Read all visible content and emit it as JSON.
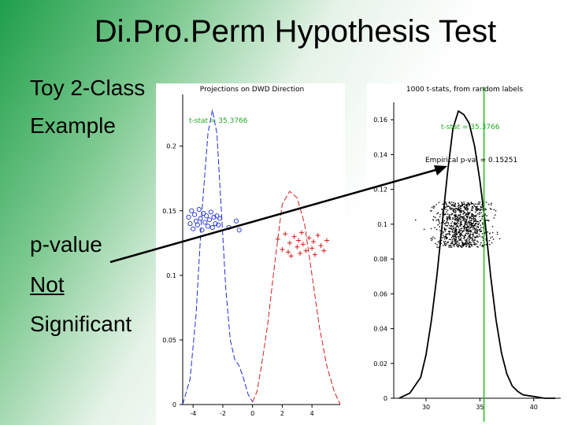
{
  "slide": {
    "title": "Di.Pro.Perm Hypothesis Test",
    "lines": [
      "Toy 2-Class",
      "Example",
      "p-value",
      "Not",
      "Significant"
    ]
  },
  "colors": {
    "class1": "#1f2fd0",
    "class2": "#d01f1f",
    "marker": "#22bb22",
    "accent": "#1e9e4a"
  },
  "chart_data": [
    {
      "type": "line",
      "title": "Projections on DWD Direction",
      "annotation": "t-stat = 35.3766",
      "y_ticks": [
        "0",
        "0.05",
        "0.1",
        "0.15",
        "0.2"
      ],
      "x_ticks": [
        "-4",
        "-2",
        "0",
        "2",
        "4"
      ],
      "ylim": [
        0,
        0.24
      ],
      "xlim": [
        -4.7,
        5.9
      ],
      "series": [
        {
          "x": [
            -4.7,
            -4.2,
            -3.8,
            -3.4,
            -3.0,
            -2.7,
            -2.4,
            -2.1,
            -1.8,
            -1.5,
            -1.2,
            -0.9,
            -0.6,
            -0.3,
            0.0
          ],
          "y": [
            0.0,
            0.02,
            0.07,
            0.15,
            0.21,
            0.228,
            0.21,
            0.15,
            0.09,
            0.05,
            0.035,
            0.03,
            0.02,
            0.008,
            0.002
          ]
        },
        {
          "x": [
            0.0,
            0.3,
            0.6,
            1.0,
            1.5,
            2.0,
            2.5,
            3.0,
            3.5,
            4.0,
            4.5,
            5.0,
            5.5,
            5.9
          ],
          "y": [
            0.002,
            0.01,
            0.03,
            0.06,
            0.11,
            0.155,
            0.165,
            0.16,
            0.14,
            0.1,
            0.06,
            0.03,
            0.01,
            0.0
          ]
        }
      ],
      "scatter": [
        {
          "x": [
            -4.3,
            -4.2,
            -4.1,
            -4.0,
            -3.9,
            -3.8,
            -3.7,
            -3.6,
            -3.5,
            -3.4,
            -3.3,
            -3.2,
            -3.1,
            -3.0,
            -2.9,
            -2.8,
            -2.7,
            -2.6,
            -2.5,
            -2.4,
            -2.3,
            -2.2,
            -1.6,
            -1.1,
            -0.9
          ],
          "y": [
            0.145,
            0.14,
            0.15,
            0.136,
            0.147,
            0.142,
            0.139,
            0.151,
            0.144,
            0.135,
            0.148,
            0.141,
            0.146,
            0.138,
            0.143,
            0.149,
            0.137,
            0.145,
            0.14,
            0.146,
            0.139,
            0.144,
            0.137,
            0.142,
            0.135
          ]
        },
        {
          "x": [
            1.7,
            2.0,
            2.2,
            2.4,
            2.5,
            2.6,
            2.8,
            3.0,
            3.1,
            3.2,
            3.3,
            3.4,
            3.6,
            3.8,
            4.0,
            4.1,
            4.2,
            4.4,
            4.6,
            4.8,
            5.0
          ],
          "y": [
            0.128,
            0.12,
            0.132,
            0.118,
            0.125,
            0.115,
            0.13,
            0.122,
            0.127,
            0.117,
            0.133,
            0.124,
            0.119,
            0.129,
            0.121,
            0.126,
            0.116,
            0.131,
            0.123,
            0.119,
            0.127
          ]
        }
      ]
    },
    {
      "type": "line",
      "title": "1000 t-stats, from random labels",
      "annotation_1": "t-stat = 35.3766",
      "annotation_2": "Empirical p-val = 0.15251",
      "y_ticks": [
        "0",
        "0.02",
        "0.04",
        "0.06",
        "0.08",
        "0.1",
        "0.12",
        "0.14",
        "0.16"
      ],
      "x_ticks": [
        "30",
        "35",
        "40"
      ],
      "ylim": [
        0,
        0.17
      ],
      "xlim": [
        27,
        42.5
      ],
      "marker_x": 35.3766,
      "series": [
        {
          "x": [
            27.5,
            28.5,
            29.5,
            30.0,
            30.5,
            31.0,
            31.5,
            32.0,
            32.5,
            33.0,
            33.5,
            34.0,
            34.5,
            35.0,
            35.5,
            36.0,
            36.5,
            37.0,
            37.5,
            38.0,
            38.5,
            39.0,
            40.0,
            41.0,
            42.0
          ],
          "y": [
            0.0,
            0.003,
            0.012,
            0.025,
            0.045,
            0.07,
            0.1,
            0.13,
            0.155,
            0.165,
            0.163,
            0.158,
            0.145,
            0.125,
            0.1,
            0.07,
            0.045,
            0.026,
            0.014,
            0.007,
            0.004,
            0.002,
            0.001,
            0.0,
            0.0
          ]
        }
      ]
    }
  ]
}
